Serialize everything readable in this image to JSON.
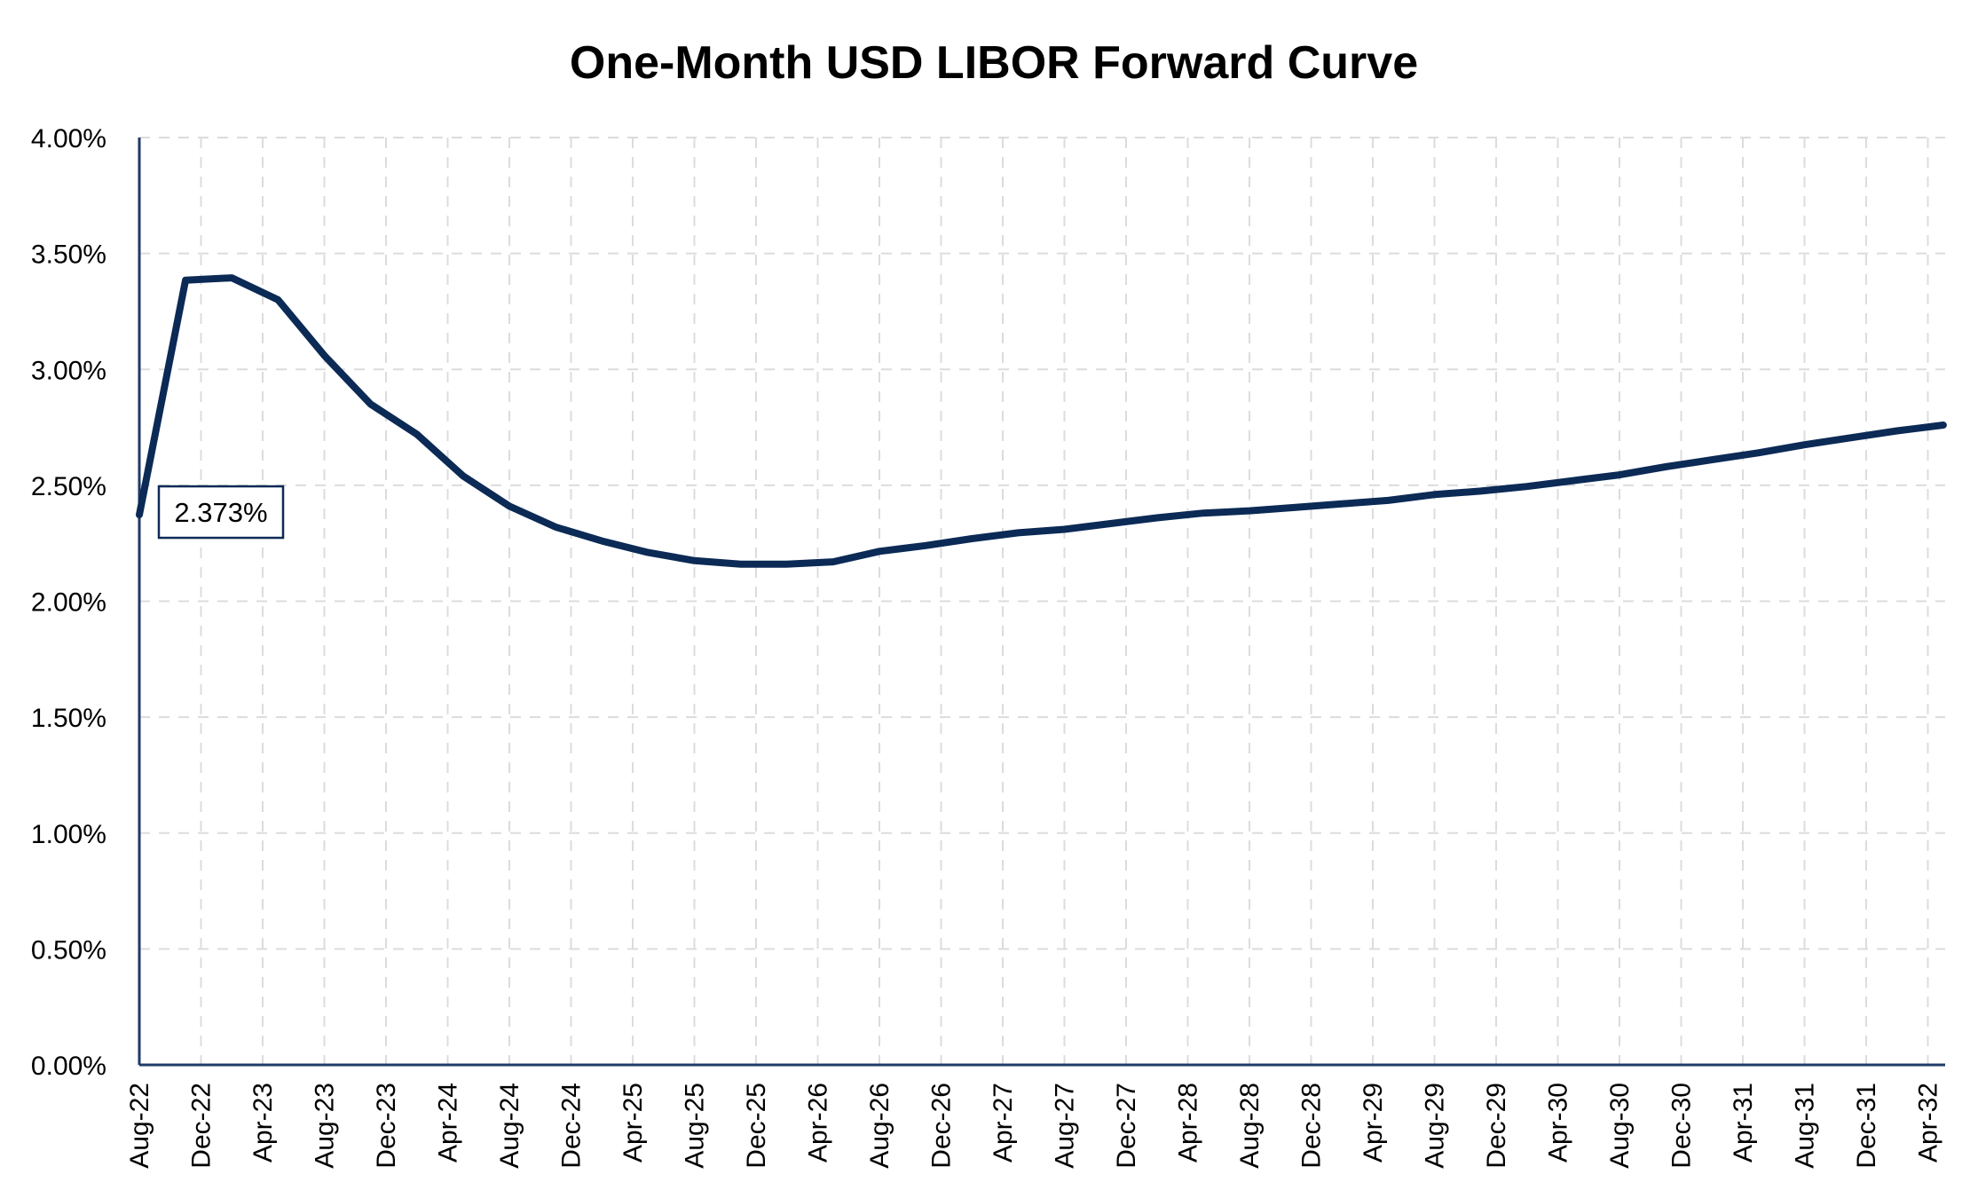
{
  "chart_data": {
    "type": "line",
    "title": "One-Month USD LIBOR Forward Curve",
    "xlabel": "",
    "ylabel": "",
    "ylim": [
      0,
      4.0
    ],
    "y_ticks": [
      "0.00%",
      "0.50%",
      "1.00%",
      "1.50%",
      "2.00%",
      "2.50%",
      "3.00%",
      "3.50%",
      "4.00%"
    ],
    "y_tick_values": [
      0,
      0.5,
      1.0,
      1.5,
      2.0,
      2.5,
      3.0,
      3.5,
      4.0
    ],
    "x_ticks": [
      "Aug-22",
      "Dec-22",
      "Apr-23",
      "Aug-23",
      "Dec-23",
      "Apr-24",
      "Aug-24",
      "Dec-24",
      "Apr-25",
      "Aug-25",
      "Dec-25",
      "Apr-26",
      "Aug-26",
      "Dec-26",
      "Apr-27",
      "Aug-27",
      "Dec-27",
      "Apr-28",
      "Aug-28",
      "Dec-28",
      "Apr-29",
      "Aug-29",
      "Dec-29",
      "Apr-30",
      "Aug-30",
      "Dec-30",
      "Apr-31",
      "Aug-31",
      "Dec-31",
      "Apr-32"
    ],
    "grid": true,
    "legend": "none",
    "series": [
      {
        "color": "#0b2a55",
        "x": [
          "Aug-22",
          "Nov-22",
          "Feb-23",
          "May-23",
          "Aug-23",
          "Nov-23",
          "Feb-24",
          "May-24",
          "Aug-24",
          "Nov-24",
          "Feb-25",
          "May-25",
          "Aug-25",
          "Nov-25",
          "Feb-26",
          "May-26",
          "Aug-26",
          "Nov-26",
          "Feb-27",
          "May-27",
          "Aug-27",
          "Nov-27",
          "Feb-28",
          "May-28",
          "Aug-28",
          "Nov-28",
          "Feb-29",
          "May-29",
          "Aug-29",
          "Nov-29",
          "Feb-30",
          "May-30",
          "Aug-30",
          "Nov-30",
          "Feb-31",
          "May-31",
          "Aug-31",
          "Nov-31",
          "Feb-32",
          "May-32"
        ],
        "values": [
          2.373,
          3.385,
          3.395,
          3.3,
          3.06,
          2.85,
          2.72,
          2.54,
          2.41,
          2.32,
          2.26,
          2.21,
          2.175,
          2.16,
          2.16,
          2.17,
          2.215,
          2.24,
          2.27,
          2.295,
          2.31,
          2.335,
          2.36,
          2.38,
          2.39,
          2.405,
          2.42,
          2.435,
          2.46,
          2.475,
          2.495,
          2.52,
          2.545,
          2.58,
          2.61,
          2.64,
          2.675,
          2.705,
          2.735,
          2.76
        ]
      }
    ],
    "annotations": [
      {
        "text": "2.373%",
        "x": "Aug-22",
        "y": 2.373
      }
    ]
  }
}
